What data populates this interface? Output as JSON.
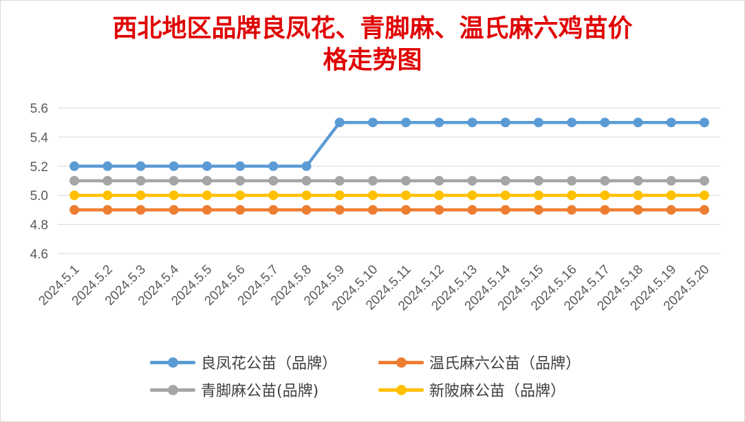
{
  "chart_data": {
    "type": "line",
    "title_line1": "西北地区品牌良凤花、青脚麻、温氏麻六鸡苗价",
    "title_line2": "格走势图",
    "categories": [
      "2024.5.1",
      "2024.5.2",
      "2024.5.3",
      "2024.5.4",
      "2024.5.5",
      "2024.5.6",
      "2024.5.7",
      "2024.5.8",
      "2024.5.9",
      "2024.5.10",
      "2024.5.11",
      "2024.5.12",
      "2024.5.13",
      "2024.5.14",
      "2024.5.15",
      "2024.5.16",
      "2024.5.17",
      "2024.5.18",
      "2024.5.19",
      "2024.5.20"
    ],
    "y_ticks": [
      "4.6",
      "4.8",
      "5.0",
      "5.2",
      "5.4",
      "5.6"
    ],
    "ylim": [
      4.6,
      5.6
    ],
    "grid": true,
    "legend_position": "bottom",
    "series": [
      {
        "name": "良凤花公苗（品牌）",
        "color": "#5b9bd5",
        "values": [
          5.2,
          5.2,
          5.2,
          5.2,
          5.2,
          5.2,
          5.2,
          5.2,
          5.5,
          5.5,
          5.5,
          5.5,
          5.5,
          5.5,
          5.5,
          5.5,
          5.5,
          5.5,
          5.5,
          5.5
        ]
      },
      {
        "name": "温氏麻六公苗（品牌）",
        "color": "#ed7d31",
        "values": [
          4.9,
          4.9,
          4.9,
          4.9,
          4.9,
          4.9,
          4.9,
          4.9,
          4.9,
          4.9,
          4.9,
          4.9,
          4.9,
          4.9,
          4.9,
          4.9,
          4.9,
          4.9,
          4.9,
          4.9
        ]
      },
      {
        "name": "青脚麻公苗(品牌)",
        "color": "#a5a5a5",
        "values": [
          5.1,
          5.1,
          5.1,
          5.1,
          5.1,
          5.1,
          5.1,
          5.1,
          5.1,
          5.1,
          5.1,
          5.1,
          5.1,
          5.1,
          5.1,
          5.1,
          5.1,
          5.1,
          5.1,
          5.1
        ]
      },
      {
        "name": "新陂麻公苗（品牌）",
        "color": "#ffc000",
        "values": [
          5.0,
          5.0,
          5.0,
          5.0,
          5.0,
          5.0,
          5.0,
          5.0,
          5.0,
          5.0,
          5.0,
          5.0,
          5.0,
          5.0,
          5.0,
          5.0,
          5.0,
          5.0,
          5.0,
          5.0
        ]
      }
    ]
  }
}
